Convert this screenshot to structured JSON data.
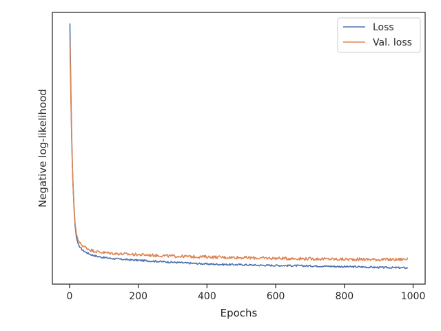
{
  "chart_data": {
    "type": "line",
    "title": "",
    "xlabel": "Epochs",
    "ylabel": "Negative log-likelihood",
    "xlim": [
      -50,
      1035
    ],
    "ylim": [
      0.0,
      1.0
    ],
    "xticks": [
      0,
      200,
      400,
      600,
      800,
      1000
    ],
    "xtick_labels": [
      "0",
      "200",
      "400",
      "600",
      "800",
      "1000"
    ],
    "yticks": [],
    "grid": false,
    "legend_position": "top-right",
    "series": [
      {
        "name": "Loss",
        "color": "#4c72b0",
        "x": [
          1,
          2,
          4,
          6,
          8,
          10,
          13,
          16,
          20,
          25,
          30,
          40,
          50,
          60,
          80,
          100,
          125,
          150,
          175,
          200,
          250,
          300,
          350,
          400,
          450,
          500,
          550,
          600,
          650,
          700,
          750,
          800,
          850,
          900,
          950,
          985
        ],
        "y": [
          1.0,
          0.9,
          0.72,
          0.56,
          0.44,
          0.35,
          0.25,
          0.18,
          0.13,
          0.105,
          0.09,
          0.077,
          0.069,
          0.062,
          0.054,
          0.049,
          0.045,
          0.042,
          0.04,
          0.038,
          0.034,
          0.03,
          0.026,
          0.023,
          0.021,
          0.02,
          0.018,
          0.017,
          0.016,
          0.015,
          0.014,
          0.012,
          0.011,
          0.009,
          0.008,
          0.007
        ]
      },
      {
        "name": "Val. loss",
        "color": "#dd8452",
        "x": [
          1,
          2,
          4,
          6,
          8,
          10,
          13,
          16,
          20,
          25,
          30,
          40,
          50,
          60,
          80,
          100,
          125,
          150,
          175,
          200,
          250,
          300,
          350,
          400,
          450,
          500,
          550,
          600,
          650,
          700,
          750,
          800,
          850,
          900,
          950,
          985
        ],
        "y": [
          0.93,
          0.84,
          0.68,
          0.54,
          0.43,
          0.35,
          0.26,
          0.19,
          0.145,
          0.12,
          0.108,
          0.095,
          0.087,
          0.08,
          0.073,
          0.069,
          0.066,
          0.064,
          0.062,
          0.061,
          0.058,
          0.055,
          0.053,
          0.052,
          0.05,
          0.049,
          0.047,
          0.046,
          0.045,
          0.044,
          0.043,
          0.042,
          0.042,
          0.041,
          0.041,
          0.043
        ]
      }
    ]
  }
}
